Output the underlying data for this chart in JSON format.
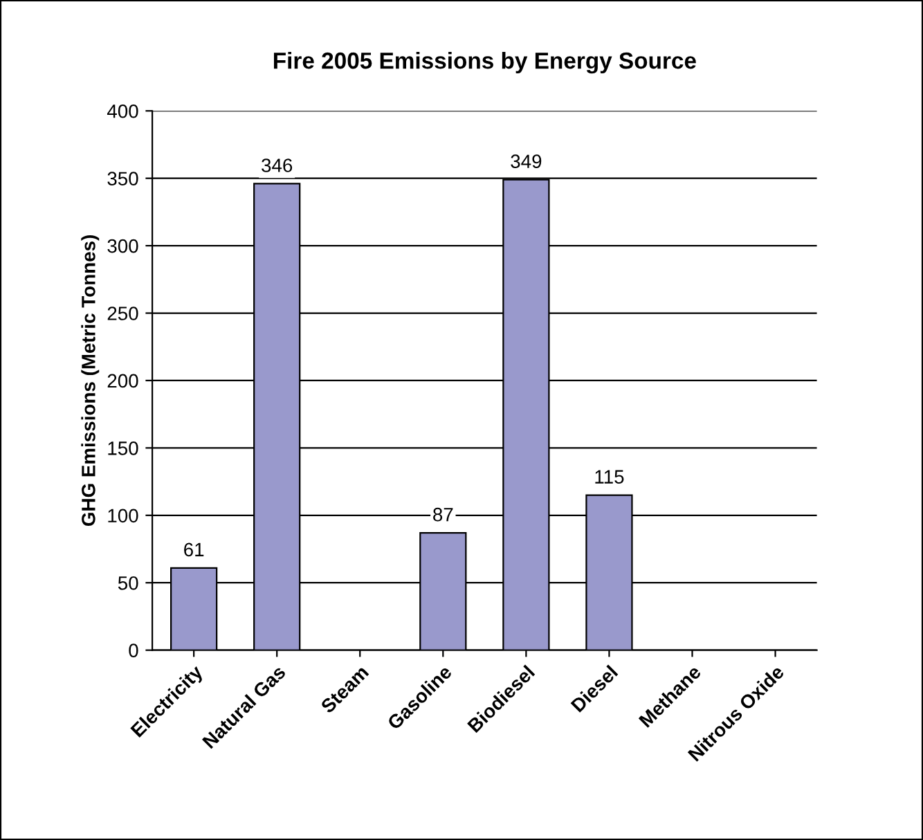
{
  "chart_data": {
    "type": "bar",
    "title": "Fire 2005 Emissions by Energy Source",
    "ylabel": "GHG Emissions (Metric Tonnes)",
    "categories": [
      "Electricity",
      "Natural Gas",
      "Steam",
      "Gasoline",
      "Biodiesel",
      "Diesel",
      "Methane",
      "Nitrous Oxide"
    ],
    "values": [
      61,
      346,
      null,
      87,
      349,
      115,
      null,
      null
    ],
    "color": "#9999cc",
    "ylim": [
      0,
      400
    ],
    "yticks": [
      0,
      50,
      100,
      150,
      200,
      250,
      300,
      350,
      400
    ],
    "grid": "y",
    "data_labels": true,
    "legend": false
  }
}
